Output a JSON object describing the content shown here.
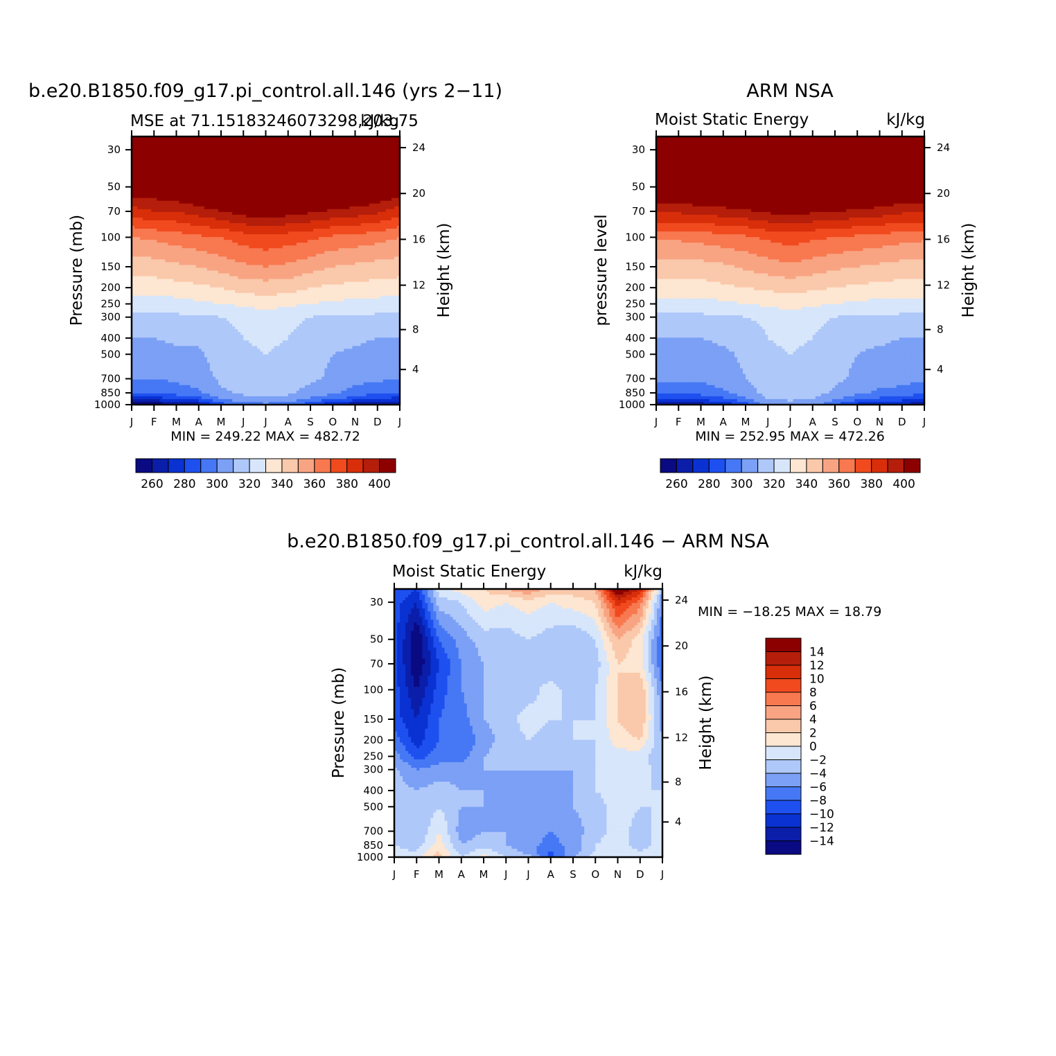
{
  "chart_data": [
    {
      "type": "heatmap",
      "title": "b.e20.B1850.f09_g17.pi_control.all.146 (yrs 2−11)",
      "subtitle_left": "MSE at 71.15183246073298,203.75",
      "subtitle_right": "kJ/kg",
      "ylabel": "Pressure (mb)",
      "ylabel_right": "Height (km)",
      "x_ticks": [
        "J",
        "F",
        "M",
        "A",
        "M",
        "J",
        "J",
        "A",
        "S",
        "O",
        "N",
        "D",
        "J"
      ],
      "y_ticks": [
        "30",
        "50",
        "70",
        "100",
        "150",
        "200",
        "250",
        "300",
        "400",
        "500",
        "700",
        "850",
        "1000"
      ],
      "y_ticks_right": [
        "24",
        "20",
        "16",
        "12",
        "8",
        "4"
      ],
      "ylim": [
        1000,
        25
      ],
      "min_max_text": "MIN = 249.22 MAX = 482.72",
      "min": 249.22,
      "max": 482.72,
      "colorbar_labels": [
        "260",
        "280",
        "300",
        "320",
        "340",
        "360",
        "380",
        "400"
      ],
      "levels": [
        260,
        270,
        280,
        290,
        300,
        310,
        320,
        330,
        340,
        350,
        360,
        370,
        380,
        390,
        400
      ],
      "band_values": [
        250,
        260,
        270,
        280,
        290,
        300,
        310,
        320,
        330,
        340,
        350,
        360,
        370,
        380,
        390,
        400
      ],
      "profile_pressures": [
        1000,
        925,
        850,
        700,
        500,
        400,
        300,
        250,
        200,
        150,
        100,
        70,
        50,
        30,
        25
      ],
      "month_profiles": [
        [
          255,
          275,
          290,
          300,
          305,
          310,
          318,
          325,
          335,
          345,
          360,
          385,
          410,
          440,
          445
        ],
        [
          252,
          275,
          290,
          300,
          305,
          310,
          318,
          325,
          335,
          345,
          362,
          390,
          410,
          440,
          445
        ],
        [
          258,
          280,
          295,
          302,
          308,
          312,
          318,
          326,
          336,
          348,
          365,
          390,
          415,
          445,
          450
        ],
        [
          265,
          285,
          298,
          305,
          308,
          312,
          318,
          328,
          338,
          350,
          368,
          395,
          420,
          450,
          455
        ],
        [
          285,
          300,
          308,
          312,
          315,
          316,
          320,
          330,
          340,
          354,
          370,
          400,
          425,
          455,
          460
        ],
        [
          295,
          306,
          312,
          316,
          318,
          320,
          322,
          332,
          344,
          358,
          375,
          405,
          430,
          460,
          465
        ],
        [
          298,
          308,
          314,
          318,
          320,
          322,
          325,
          335,
          345,
          360,
          378,
          408,
          432,
          462,
          468
        ],
        [
          295,
          306,
          312,
          316,
          318,
          320,
          322,
          332,
          344,
          358,
          375,
          405,
          430,
          460,
          465
        ],
        [
          285,
          298,
          306,
          312,
          314,
          316,
          320,
          330,
          340,
          354,
          372,
          402,
          428,
          458,
          462
        ],
        [
          270,
          292,
          302,
          308,
          310,
          314,
          318,
          328,
          338,
          350,
          368,
          398,
          424,
          452,
          458
        ],
        [
          262,
          285,
          296,
          304,
          308,
          312,
          318,
          327,
          337,
          348,
          366,
          396,
          420,
          448,
          452
        ],
        [
          258,
          280,
          292,
          302,
          306,
          310,
          318,
          326,
          336,
          346,
          364,
          392,
          416,
          445,
          450
        ],
        [
          255,
          275,
          290,
          300,
          305,
          310,
          318,
          325,
          335,
          345,
          360,
          385,
          410,
          440,
          445
        ]
      ]
    },
    {
      "type": "heatmap",
      "title": "ARM NSA",
      "subtitle_left": "Moist Static Energy",
      "subtitle_right": "kJ/kg",
      "ylabel": "pressure level",
      "ylabel_right": "Height (km)",
      "x_ticks": [
        "J",
        "F",
        "M",
        "A",
        "M",
        "J",
        "J",
        "A",
        "S",
        "O",
        "N",
        "D",
        "J"
      ],
      "y_ticks": [
        "30",
        "50",
        "70",
        "100",
        "150",
        "200",
        "250",
        "300",
        "400",
        "500",
        "700",
        "850",
        "1000"
      ],
      "y_ticks_right": [
        "24",
        "20",
        "16",
        "12",
        "8",
        "4"
      ],
      "ylim": [
        1000,
        25
      ],
      "min_max_text": "MIN = 252.95 MAX = 472.26",
      "min": 252.95,
      "max": 472.26,
      "colorbar_labels": [
        "260",
        "280",
        "300",
        "320",
        "340",
        "360",
        "380",
        "400"
      ],
      "levels": [
        260,
        270,
        280,
        290,
        300,
        310,
        320,
        330,
        340,
        350,
        360,
        370,
        380,
        390,
        400
      ],
      "band_values": [
        250,
        260,
        270,
        280,
        290,
        300,
        310,
        320,
        330,
        340,
        350,
        360,
        370,
        380,
        390,
        400
      ],
      "profile_pressures": [
        1000,
        925,
        850,
        700,
        500,
        400,
        300,
        250,
        200,
        150,
        100,
        70,
        50,
        30,
        25
      ],
      "month_profiles": [
        [
          262,
          280,
          292,
          302,
          306,
          310,
          318,
          326,
          336,
          346,
          362,
          392,
          418,
          450,
          455
        ],
        [
          262,
          280,
          292,
          302,
          306,
          310,
          318,
          326,
          336,
          346,
          362,
          392,
          418,
          450,
          455
        ],
        [
          265,
          282,
          294,
          302,
          306,
          310,
          318,
          326,
          336,
          346,
          364,
          394,
          420,
          452,
          458
        ],
        [
          270,
          288,
          298,
          305,
          308,
          312,
          318,
          328,
          338,
          348,
          366,
          396,
          422,
          455,
          460
        ],
        [
          285,
          298,
          305,
          310,
          312,
          314,
          320,
          330,
          340,
          352,
          368,
          398,
          425,
          458,
          462
        ],
        [
          305,
          310,
          314,
          316,
          318,
          320,
          322,
          332,
          342,
          355,
          372,
          402,
          430,
          462,
          466
        ],
        [
          305,
          312,
          316,
          318,
          320,
          322,
          326,
          334,
          344,
          358,
          375,
          405,
          432,
          464,
          468
        ],
        [
          305,
          310,
          314,
          316,
          318,
          320,
          322,
          332,
          342,
          355,
          372,
          402,
          430,
          462,
          466
        ],
        [
          290,
          302,
          308,
          312,
          314,
          316,
          320,
          330,
          340,
          352,
          370,
          400,
          426,
          458,
          462
        ],
        [
          275,
          294,
          302,
          308,
          310,
          312,
          318,
          328,
          338,
          350,
          368,
          398,
          424,
          455,
          458
        ],
        [
          270,
          288,
          298,
          305,
          308,
          312,
          318,
          327,
          337,
          348,
          366,
          396,
          420,
          452,
          455
        ],
        [
          268,
          284,
          296,
          304,
          306,
          310,
          318,
          326,
          336,
          346,
          364,
          392,
          418,
          450,
          455
        ],
        [
          262,
          280,
          292,
          302,
          306,
          310,
          318,
          326,
          336,
          346,
          362,
          392,
          418,
          450,
          455
        ]
      ]
    },
    {
      "type": "heatmap",
      "title": "b.e20.B1850.f09_g17.pi_control.all.146 − ARM NSA",
      "subtitle_left": "Moist Static Energy",
      "subtitle_right": "kJ/kg",
      "ylabel": "Pressure (mb)",
      "ylabel_right": "Height (km)",
      "x_ticks": [
        "J",
        "F",
        "M",
        "A",
        "M",
        "J",
        "J",
        "A",
        "S",
        "O",
        "N",
        "D",
        "J"
      ],
      "y_ticks": [
        "30",
        "50",
        "70",
        "100",
        "150",
        "200",
        "250",
        "300",
        "400",
        "500",
        "700",
        "850",
        "1000"
      ],
      "y_ticks_right": [
        "24",
        "20",
        "16",
        "12",
        "8",
        "4"
      ],
      "ylim": [
        1000,
        25
      ],
      "min_max_text": "MIN = −18.25 MAX =   18.79",
      "min": -18.25,
      "max": 18.79,
      "colorbar_labels": [
        "14",
        "12",
        "10",
        "8",
        "6",
        "4",
        "2",
        "0",
        "−2",
        "−4",
        "−6",
        "−8",
        "−10",
        "−12",
        "−14"
      ],
      "levels": [
        -14,
        -12,
        -10,
        -8,
        -6,
        -4,
        -2,
        0,
        2,
        4,
        6,
        8,
        10,
        12,
        14
      ],
      "band_values": [
        -15,
        -13,
        -11,
        -9,
        -7,
        -5,
        -3,
        -1,
        1,
        3,
        5,
        7,
        9,
        11,
        13,
        15
      ],
      "profile_pressures": [
        1000,
        925,
        850,
        700,
        500,
        400,
        300,
        250,
        200,
        150,
        100,
        70,
        50,
        30,
        25
      ],
      "month_profiles": [
        [
          -1,
          -1.5,
          -2,
          -2.5,
          -3,
          -3,
          -3.5,
          -5,
          -7,
          -9,
          -9,
          -9,
          -9,
          -9,
          -8
        ],
        [
          -1,
          -2,
          -3,
          -4,
          -4,
          -4,
          -6,
          -9,
          -11,
          -12,
          -14,
          -16,
          -16,
          -12,
          -10
        ],
        [
          3,
          2,
          1,
          0,
          -2,
          -3,
          -5,
          -7,
          -8,
          -8,
          -9,
          -10,
          -8,
          -3,
          -1
        ],
        [
          -2,
          -3,
          -4,
          -5,
          -4,
          -4,
          -5,
          -7,
          -8,
          -7,
          -6,
          -6,
          -5,
          -2,
          1
        ],
        [
          1,
          -1,
          -3,
          -4,
          -4,
          -4,
          -4,
          -4,
          -5,
          -4,
          -4,
          -4,
          -3,
          1,
          2
        ],
        [
          -2,
          -3,
          -4,
          -4,
          -5,
          -5,
          -4,
          -3,
          -3,
          -3,
          -3,
          -4,
          -3,
          0,
          4
        ],
        [
          -3,
          -5,
          -5,
          -5,
          -5,
          -5,
          -4,
          -3,
          -2,
          -1,
          -3,
          -3,
          -2,
          1,
          6
        ],
        [
          -9,
          -8,
          -7,
          -6,
          -6,
          -6,
          -4,
          -3,
          -3,
          -2,
          -1,
          -4,
          -3,
          0,
          3
        ],
        [
          -4,
          -5,
          -5,
          -5,
          -4,
          -4,
          -4,
          -3,
          -2,
          -2,
          -3,
          -4,
          -4,
          1,
          3
        ],
        [
          -1,
          -2,
          -2,
          -3,
          -3,
          -2,
          -2,
          -2,
          -2,
          -2,
          -2,
          -3,
          -2,
          2,
          4
        ],
        [
          -1,
          -1,
          -1,
          -1,
          -1,
          -1,
          -1,
          -1,
          1,
          2,
          2,
          2,
          4,
          11,
          17
        ],
        [
          -1,
          -2,
          -3,
          -3,
          -2,
          -2,
          -1,
          -1,
          2,
          4,
          4,
          1,
          1,
          7,
          12
        ],
        [
          -1,
          -1,
          -1,
          -1,
          -2,
          -2,
          -3,
          -4,
          -4,
          -5,
          -6,
          -8,
          -8,
          -6,
          -4
        ]
      ]
    }
  ]
}
